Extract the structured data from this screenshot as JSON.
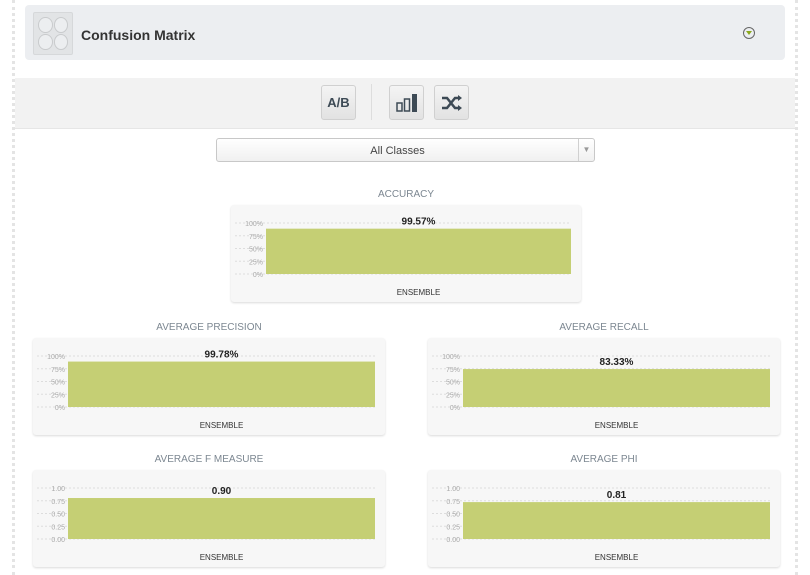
{
  "header": {
    "title": "Confusion Matrix",
    "icon": "confusion-matrix-icon",
    "toggle_icon": "collapse-toggle-icon"
  },
  "toolbar": {
    "buttons": [
      {
        "label": "A/B",
        "icon": "ab-compare-icon"
      },
      {
        "label": "",
        "icon": "bar-chart-icon"
      },
      {
        "label": "",
        "icon": "shuffle-icon"
      }
    ]
  },
  "class_select": {
    "value": "All Classes"
  },
  "colors": {
    "bar": "#c5cf74",
    "header_bg": "#eceef1"
  },
  "chart_data": [
    {
      "type": "bar",
      "title": "ACCURACY",
      "categories": [
        "ENSEMBLE"
      ],
      "values": [
        0.9957
      ],
      "value_labels": [
        "99.57%"
      ],
      "yticks": [
        "0%",
        "25%",
        "50%",
        "75%",
        "100%"
      ],
      "ylim": [
        0,
        1
      ]
    },
    {
      "type": "bar",
      "title": "AVERAGE PRECISION",
      "categories": [
        "ENSEMBLE"
      ],
      "values": [
        0.9978
      ],
      "value_labels": [
        "99.78%"
      ],
      "yticks": [
        "0%",
        "25%",
        "50%",
        "75%",
        "100%"
      ],
      "ylim": [
        0,
        1
      ]
    },
    {
      "type": "bar",
      "title": "AVERAGE RECALL",
      "categories": [
        "ENSEMBLE"
      ],
      "values": [
        0.8333
      ],
      "value_labels": [
        "83.33%"
      ],
      "yticks": [
        "0%",
        "25%",
        "50%",
        "75%",
        "100%"
      ],
      "ylim": [
        0,
        1
      ]
    },
    {
      "type": "bar",
      "title": "AVERAGE F MEASURE",
      "categories": [
        "ENSEMBLE"
      ],
      "values": [
        0.9
      ],
      "value_labels": [
        "0.90"
      ],
      "yticks": [
        "0.00",
        "0.25",
        "0.50",
        "0.75",
        "1.00"
      ],
      "ylim": [
        0,
        1
      ]
    },
    {
      "type": "bar",
      "title": "AVERAGE PHI",
      "categories": [
        "ENSEMBLE"
      ],
      "values": [
        0.81
      ],
      "value_labels": [
        "0.81"
      ],
      "yticks": [
        "0.00",
        "0.25",
        "0.50",
        "0.75",
        "1.00"
      ],
      "ylim": [
        0,
        1
      ]
    }
  ]
}
